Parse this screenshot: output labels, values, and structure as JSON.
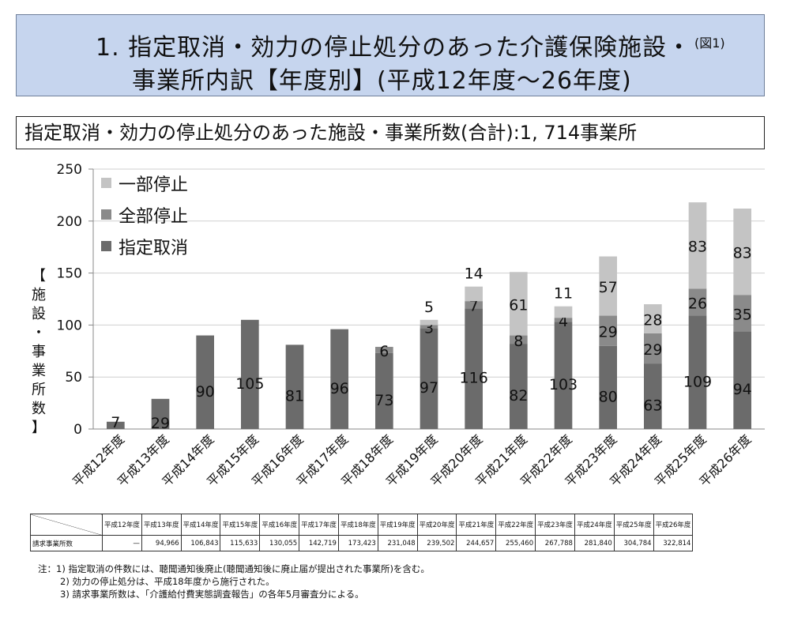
{
  "header": {
    "title_line1": "1. 指定取消・効力の停止処分のあった介護保険施設・",
    "title_line2": "事業所内訳【年度別】(平成12年度～26年度)",
    "figure_label": "(図1)"
  },
  "subtitle": "指定取消・効力の停止処分のあった施設・事業所数(合計):1, 714事業所",
  "chart_data": {
    "type": "bar",
    "stacked": true,
    "categories": [
      "平成12年度",
      "平成13年度",
      "平成14年度",
      "平成15年度",
      "平成16年度",
      "平成17年度",
      "平成18年度",
      "平成19年度",
      "平成20年度",
      "平成21年度",
      "平成22年度",
      "平成23年度",
      "平成24年度",
      "平成25年度",
      "平成26年度"
    ],
    "series": [
      {
        "name": "指定取消",
        "color": "#6b6b6b",
        "values": [
          7,
          29,
          90,
          105,
          81,
          96,
          73,
          97,
          116,
          82,
          103,
          80,
          63,
          109,
          94
        ]
      },
      {
        "name": "全部停止",
        "color": "#8a8a8a",
        "values": [
          0,
          0,
          0,
          0,
          0,
          0,
          6,
          3,
          7,
          8,
          4,
          29,
          29,
          26,
          35
        ]
      },
      {
        "name": "一部停止",
        "color": "#c4c4c4",
        "values": [
          0,
          0,
          0,
          0,
          0,
          0,
          0,
          5,
          14,
          61,
          11,
          57,
          28,
          83,
          83
        ]
      }
    ],
    "ylabel": "【施設・事業所数】",
    "ylim": [
      0,
      250
    ],
    "yticks": [
      0,
      50,
      100,
      150,
      200,
      250
    ],
    "legend_position": "top-left",
    "legend_order": [
      "一部停止",
      "全部停止",
      "指定取消"
    ],
    "gridlines": true
  },
  "table": {
    "row_label": "請求事業所数",
    "headers": [
      "平成12年度",
      "平成13年度",
      "平成14年度",
      "平成15年度",
      "平成16年度",
      "平成17年度",
      "平成18年度",
      "平成19年度",
      "平成20年度",
      "平成21年度",
      "平成22年度",
      "平成23年度",
      "平成24年度",
      "平成25年度",
      "平成26年度"
    ],
    "values": [
      "—",
      "94,966",
      "106,843",
      "115,633",
      "130,055",
      "142,719",
      "173,423",
      "231,048",
      "239,502",
      "244,657",
      "255,460",
      "267,788",
      "281,840",
      "304,784",
      "322,814"
    ]
  },
  "notes": [
    "注：1) 指定取消の件数には、聴聞通知後廃止(聴聞通知後に廃止届が提出された事業所)を含む。",
    "2) 効力の停止処分は、平成18年度から施行された。",
    "3) 請求事業所数は、「介護給付費実態調査報告」の各年5月審査分による。"
  ]
}
